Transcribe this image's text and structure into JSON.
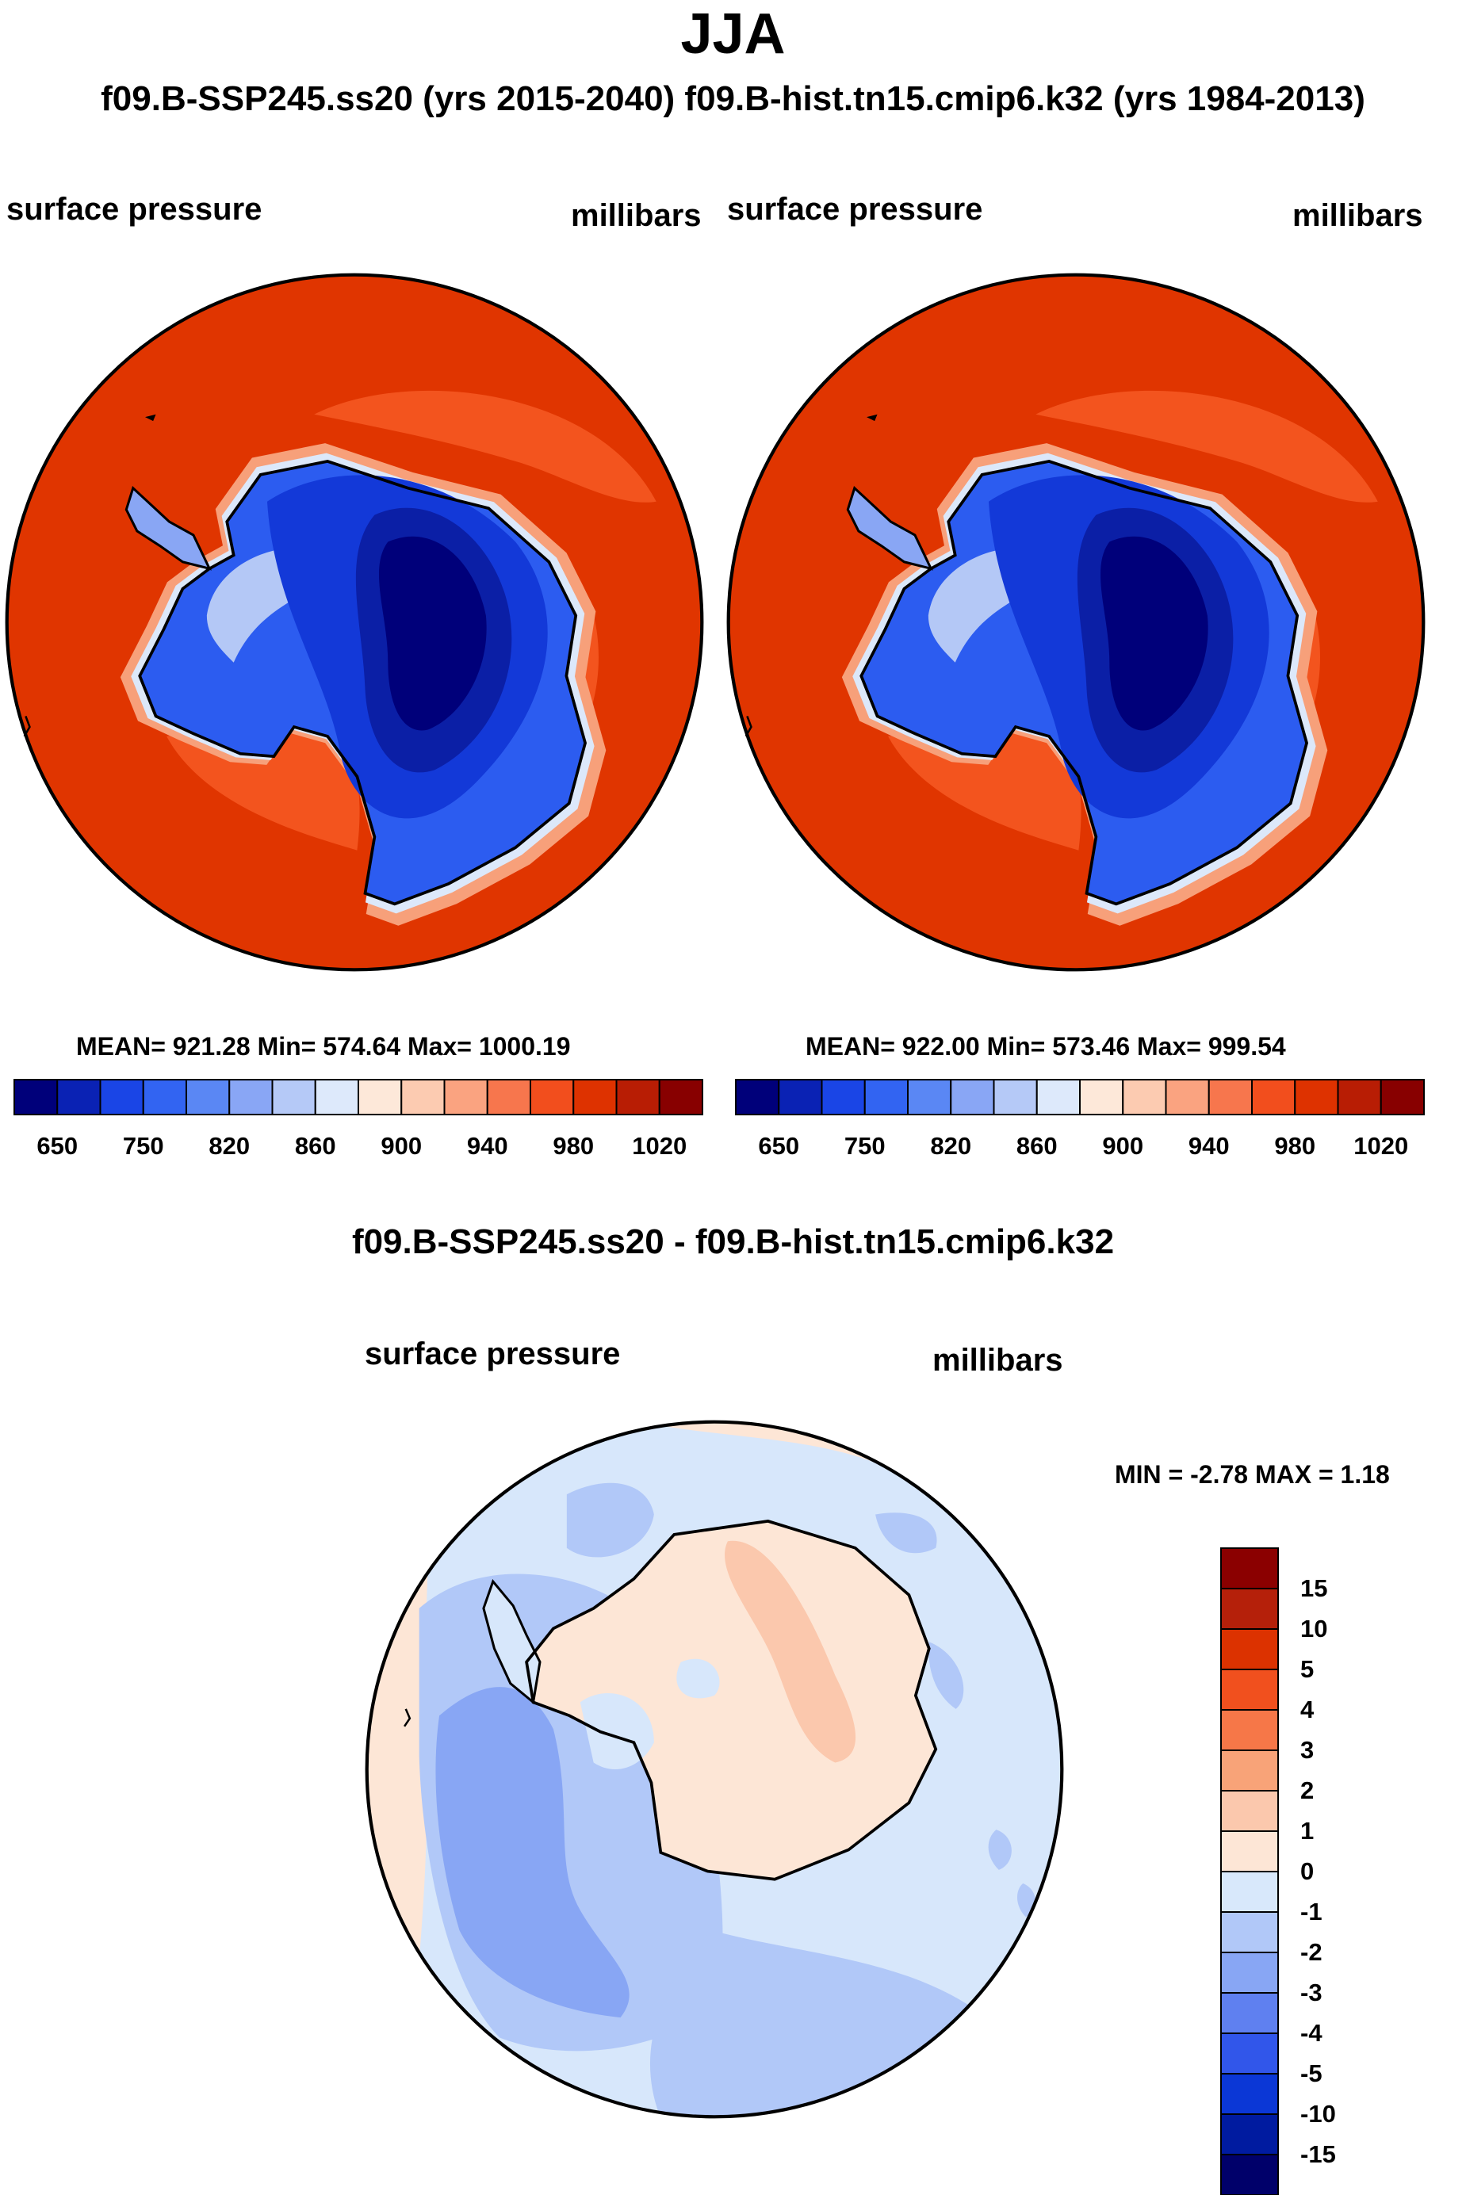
{
  "title": "JJA",
  "subtitle": "f09.B-SSP245.ss20 (yrs 2015-2040)  f09.B-hist.tn15.cmip6.k32 (yrs 1984-2013)",
  "panels": [
    {
      "field": "surface pressure",
      "units": "millibars",
      "stats": "MEAN= 921.28  Min= 574.64  Max= 1000.19"
    },
    {
      "field": "surface pressure",
      "units": "millibars",
      "stats": "MEAN= 922.00  Min= 573.46  Max= 999.54"
    }
  ],
  "diff": {
    "title": "f09.B-SSP245.ss20 - f09.B-hist.tn15.cmip6.k32",
    "field": "surface pressure",
    "units": "millibars",
    "stats": "MIN =  -2.78 MAX =   1.18"
  },
  "colors": {
    "abs_scale": [
      "#00007a",
      "#0a22b4",
      "#1a45e6",
      "#3264f2",
      "#5a87f4",
      "#89a6f5",
      "#b5c9f7",
      "#dde9fb",
      "#fde8d9",
      "#fccbb1",
      "#faa380",
      "#f7764d",
      "#f24e1d",
      "#de3200",
      "#b81d04",
      "#880000"
    ],
    "diff_scale": [
      "#00006a",
      "#001ba0",
      "#0b37d6",
      "#3156ea",
      "#5f80f0",
      "#88a6f4",
      "#b1c8f8",
      "#d8e8fb",
      "#fde6d6",
      "#fbc8ad",
      "#f8a378",
      "#f67748",
      "#f1501e",
      "#dc3200",
      "#b5200a",
      "#8b0000"
    ]
  },
  "chart_data": [
    {
      "type": "heatmap",
      "title": "surface pressure",
      "units": "millibars",
      "mean": 921.28,
      "min": 574.64,
      "max": 1000.19,
      "colorbar_levels": [
        "650",
        "750",
        "820",
        "860",
        "900",
        "940",
        "980",
        "1020"
      ]
    },
    {
      "type": "heatmap",
      "title": "surface pressure",
      "units": "millibars",
      "mean": 922.0,
      "min": 573.46,
      "max": 999.54,
      "colorbar_levels": [
        "650",
        "750",
        "820",
        "860",
        "900",
        "940",
        "980",
        "1020"
      ]
    },
    {
      "type": "heatmap",
      "title": "f09.B-SSP245.ss20 - f09.B-hist.tn15.cmip6.k32",
      "units": "millibars",
      "min": -2.78,
      "max": 1.18,
      "colorbar_levels": [
        "15",
        "10",
        "5",
        "4",
        "3",
        "2",
        "1",
        "0",
        "-1",
        "-2",
        "-3",
        "-4",
        "-5",
        "-10",
        "-15"
      ]
    }
  ]
}
